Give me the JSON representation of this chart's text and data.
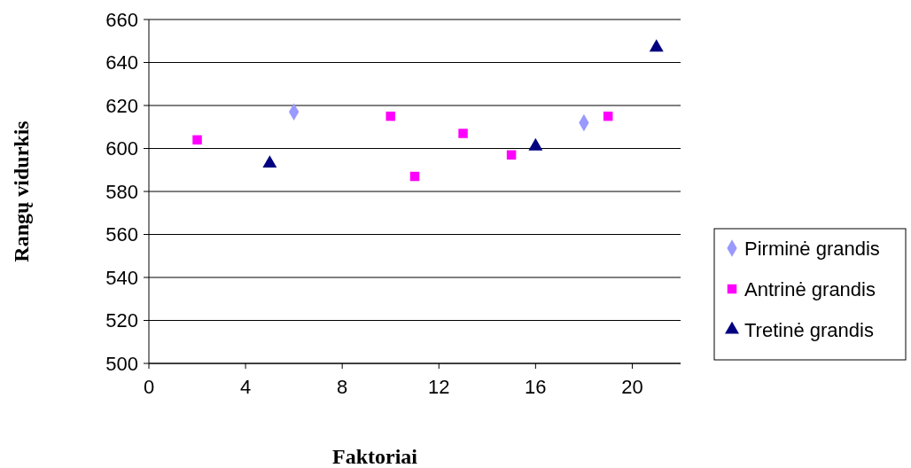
{
  "chart_data": {
    "type": "scatter",
    "xlabel": "Faktoriai",
    "ylabel": "Rangų vidurkis",
    "xlim": [
      0,
      22
    ],
    "xticks": [
      0,
      4,
      8,
      12,
      16,
      20
    ],
    "ylim": [
      500,
      660
    ],
    "yticks": [
      500,
      520,
      540,
      560,
      580,
      600,
      620,
      640,
      660
    ],
    "grid": "y",
    "legend": "right",
    "series": [
      {
        "name": "Pirminė grandis",
        "color": "#9999ff",
        "marker": "diamond",
        "x": [
          6,
          18
        ],
        "values": [
          617,
          612
        ]
      },
      {
        "name": "Antrinė grandis",
        "color": "#ff00ff",
        "marker": "square",
        "x": [
          2,
          10,
          11,
          13,
          15,
          19
        ],
        "values": [
          604,
          615,
          587,
          607,
          597,
          615
        ]
      },
      {
        "name": "Tretinė grandis",
        "color": "#000080",
        "marker": "triangle",
        "x": [
          5,
          16,
          21
        ],
        "values": [
          593,
          601,
          647
        ]
      }
    ]
  }
}
